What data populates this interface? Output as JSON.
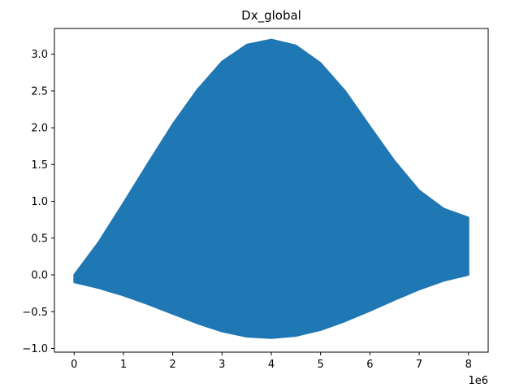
{
  "chart_data": {
    "type": "area",
    "title": "Dx_global",
    "xlabel": "",
    "ylabel": "",
    "x_offset_label": "1e6",
    "xlim": [
      -0.4,
      8.4
    ],
    "ylim": [
      -1.05,
      3.35
    ],
    "x_ticks": [
      0,
      1,
      2,
      3,
      4,
      5,
      6,
      7,
      8
    ],
    "x_tick_labels": [
      "0",
      "1",
      "2",
      "3",
      "4",
      "5",
      "6",
      "7",
      "8"
    ],
    "y_ticks": [
      -1.0,
      -0.5,
      0.0,
      0.5,
      1.0,
      1.5,
      2.0,
      2.5,
      3.0
    ],
    "y_tick_labels": [
      "−1.0",
      "−0.5",
      "0.0",
      "0.5",
      "1.0",
      "1.5",
      "2.0",
      "2.5",
      "3.0"
    ],
    "grid": false,
    "legend": "none",
    "series": [
      {
        "color": "#1f77b4",
        "upper_envelope": {
          "x": [
            0.0,
            0.5,
            1.0,
            1.5,
            2.0,
            2.5,
            3.0,
            3.5,
            4.0,
            4.5,
            5.0,
            5.5,
            6.0,
            6.5,
            7.0,
            7.5,
            8.0
          ],
          "y": [
            0.0,
            0.45,
            0.98,
            1.52,
            2.05,
            2.52,
            2.9,
            3.13,
            3.2,
            3.12,
            2.88,
            2.5,
            2.02,
            1.55,
            1.15,
            0.9,
            0.78
          ]
        },
        "lower_envelope": {
          "x": [
            0.0,
            0.5,
            1.0,
            1.5,
            2.0,
            2.5,
            3.0,
            3.5,
            4.0,
            4.5,
            5.0,
            5.5,
            6.0,
            6.5,
            7.0,
            7.5,
            8.0
          ],
          "y": [
            -0.1,
            -0.18,
            -0.28,
            -0.4,
            -0.53,
            -0.66,
            -0.77,
            -0.84,
            -0.86,
            -0.83,
            -0.75,
            -0.63,
            -0.49,
            -0.34,
            -0.2,
            -0.08,
            0.0
          ]
        }
      }
    ]
  }
}
